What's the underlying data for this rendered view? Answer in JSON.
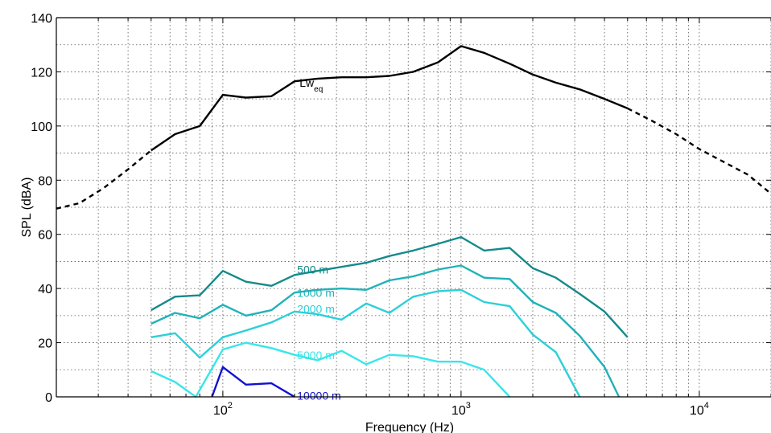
{
  "chart_data": {
    "type": "line",
    "xscale": "log",
    "xlim": [
      20,
      20000
    ],
    "ylim": [
      0,
      140
    ],
    "xlabel": "Frequency (Hz)",
    "ylabel": "SPL (dBA)",
    "grid": true,
    "x_ticks": [
      {
        "value": 100,
        "base": "10",
        "exp": "2"
      },
      {
        "value": 1000,
        "base": "10",
        "exp": "3"
      },
      {
        "value": 10000,
        "base": "10",
        "exp": "4"
      }
    ],
    "y_ticks": [
      {
        "value": 0,
        "label": "0"
      },
      {
        "value": 20,
        "label": "20"
      },
      {
        "value": 40,
        "label": "40"
      },
      {
        "value": 60,
        "label": "60"
      },
      {
        "value": 80,
        "label": "80"
      },
      {
        "value": 100,
        "label": "100"
      },
      {
        "value": 120,
        "label": "120"
      },
      {
        "value": 140,
        "label": "140"
      }
    ],
    "series": [
      {
        "name": "Lw_eq",
        "label_main": "Lw",
        "label_sub": "eq",
        "label_at": [
          210,
          114.5
        ],
        "color": "#000000",
        "x": [
          50,
          63,
          80,
          100,
          125,
          160,
          200,
          250,
          315,
          400,
          500,
          630,
          800,
          1000,
          1250,
          1600,
          2000,
          2500,
          3150,
          4000,
          5000
        ],
        "y": [
          91,
          97,
          100,
          111.5,
          110.5,
          111,
          116.5,
          117.5,
          118,
          118,
          118.5,
          120,
          123.5,
          129.5,
          127,
          123,
          119,
          116,
          113.5,
          110,
          106.5
        ],
        "dashed_left": {
          "x": [
            20,
            25,
            31.5,
            40,
            50
          ],
          "y": [
            69.5,
            71.5,
            77,
            84,
            91
          ]
        },
        "dashed_right": {
          "x": [
            5000,
            6300,
            8000,
            10000,
            12500,
            16000,
            20000
          ],
          "y": [
            106.5,
            102,
            97,
            91.5,
            87,
            82,
            75
          ]
        }
      },
      {
        "name": "500 m",
        "label_at": [
          205,
          45.5
        ],
        "color": "#148a8a",
        "x": [
          50,
          63,
          80,
          100,
          125,
          160,
          200,
          250,
          315,
          400,
          500,
          630,
          800,
          1000,
          1250,
          1600,
          2000,
          2500,
          3150,
          4000,
          5000
        ],
        "y": [
          32,
          37,
          37.5,
          46.5,
          42.5,
          41,
          45,
          46.5,
          48,
          49.5,
          52,
          54,
          56.5,
          59,
          54,
          55,
          47.5,
          44,
          38,
          31.5,
          22
        ]
      },
      {
        "name": "1000 m",
        "label_at": [
          205,
          37
        ],
        "color": "#20b2b8",
        "x": [
          50,
          63,
          80,
          100,
          125,
          160,
          200,
          250,
          315,
          400,
          500,
          630,
          800,
          1000,
          1250,
          1600,
          2000,
          2500,
          3150,
          4000,
          4600
        ],
        "y": [
          27,
          31,
          29,
          34,
          30,
          32,
          38.5,
          39.5,
          40,
          39.5,
          43,
          44.5,
          47,
          48.5,
          44,
          43.5,
          35,
          31,
          22.5,
          11,
          0
        ]
      },
      {
        "name": "2000 m",
        "label_at": [
          205,
          31
        ],
        "color": "#2cd0d8",
        "x": [
          50,
          63,
          80,
          100,
          125,
          160,
          200,
          250,
          315,
          400,
          500,
          630,
          800,
          1000,
          1250,
          1600,
          2000,
          2500,
          3150
        ],
        "y": [
          22,
          23.5,
          14.5,
          22,
          24.5,
          27.5,
          31.5,
          30.5,
          28.5,
          34.5,
          31,
          37,
          39,
          39.5,
          35,
          33.5,
          23,
          16.5,
          0
        ]
      },
      {
        "name": "5000 m",
        "label_at": [
          205,
          14
        ],
        "color": "#38e6ea",
        "x": [
          50,
          63,
          77,
          100,
          125,
          160,
          200,
          250,
          315,
          400,
          500,
          630,
          800,
          1000,
          1250,
          1600
        ],
        "y": [
          9.5,
          5.5,
          0,
          17.5,
          20,
          18,
          15.5,
          13.5,
          17,
          12,
          15.5,
          15,
          13,
          13,
          10,
          0
        ]
      },
      {
        "name": "10000 m",
        "label_at": [
          205,
          -1
        ],
        "color": "#1010d0",
        "x": [
          90,
          100,
          125,
          160,
          200
        ],
        "y": [
          0,
          11,
          4.5,
          5,
          0
        ]
      }
    ]
  }
}
